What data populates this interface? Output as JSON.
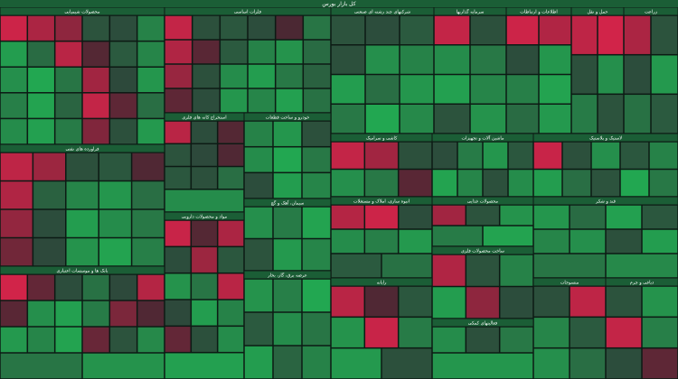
{
  "title": "کل بازار بورس",
  "sectors": [
    {
      "name": "محصولات شیمیایی",
      "changes": [
        -2.8,
        -2.1,
        -1.5,
        0.4,
        0.2,
        1.8,
        2.6,
        1.1,
        -2.4,
        -0.3,
        0.6,
        1.9,
        2.2,
        2.9,
        1.4,
        -1.9,
        0.1,
        2.4,
        1.7,
        2.8,
        0.9,
        -2.6,
        -0.5,
        1.2,
        2.1,
        2.7,
        1.6,
        -1.2,
        0.3,
        2.5
      ]
    },
    {
      "name": "فراورده های نفتی",
      "changes": [
        -2.5,
        -1.8,
        0.3,
        0.5,
        -0.2,
        -2.2,
        0.8,
        1.9,
        2.4,
        1.2,
        -1.6,
        0.2,
        2.6,
        2.1,
        1.5,
        -0.9,
        0.1,
        2.3,
        2.8,
        1.7
      ]
    },
    {
      "name": "بانک ها و موسسات اعتباری",
      "changes": [
        -2.9,
        -0.6,
        0.2,
        1.3,
        0.1,
        -2.3,
        -0.4,
        2.2,
        2.7,
        1.6,
        -1.1,
        -0.2,
        2.5,
        1.9,
        2.8,
        -0.7,
        0.4,
        2.0,
        1.4,
        2.3
      ]
    },
    {
      "name": "فلزات اساسی",
      "changes": [
        -2.6,
        0.3,
        0.5,
        0.2,
        -0.1,
        1.4,
        -2.2,
        -0.4,
        0.6,
        1.8,
        2.3,
        1.1,
        -1.7,
        0.3,
        2.1,
        2.6,
        1.5,
        0.8,
        -0.5,
        0.2,
        2.4,
        1.9,
        2.7,
        1.3
      ]
    },
    {
      "name": "استخراج کانه های فلزی",
      "changes": [
        -2.4,
        0.2,
        -0.3,
        0.4,
        0.1,
        -0.2,
        0.5,
        0.3,
        1.2,
        2.1
      ]
    },
    {
      "name": "خودرو و ساخت قطعات",
      "changes": [
        1.8,
        2.4,
        0.3,
        2.1,
        2.9,
        1.5,
        0.2,
        2.6,
        1.9
      ]
    },
    {
      "name": "سیمان، آهک و گچ",
      "changes": [
        2.2,
        1.6,
        2.8,
        0.4,
        2.5,
        1.9
      ]
    },
    {
      "name": "مواد و محصولات دارویی",
      "changes": [
        -2.7,
        -0.3,
        -2.1,
        0.2,
        -1.8,
        0.5,
        2.3,
        1.4,
        -2.4,
        0.1,
        2.6,
        1.8,
        -0.6,
        0.3,
        2.1,
        2.7
      ]
    },
    {
      "name": "عرضه برق، گاز، بخار",
      "changes": [
        2.3,
        1.7,
        2.9,
        0.6,
        2.1,
        1.4,
        2.6,
        0.9,
        1.8
      ]
    },
    {
      "name": "شرکتهای چند رشته ای صنعتی",
      "changes": [
        0.4,
        0.2,
        0.6,
        0.3,
        2.2,
        1.8,
        2.6,
        1.2,
        2.4,
        1.5,
        2.9,
        2.0
      ]
    },
    {
      "name": "سرمایه گذاریها",
      "changes": [
        -2.6,
        0.3,
        2.1,
        1.5,
        2.7,
        1.9,
        0.4,
        2.3
      ]
    },
    {
      "name": "اطلاعات و ارتباطات",
      "changes": [
        -2.8,
        -2.2,
        0.2,
        2.4,
        1.7,
        2.8,
        1.1,
        2.5
      ]
    },
    {
      "name": "حمل و نقل",
      "changes": [
        -2.5,
        -2.9,
        0.3,
        2.2,
        1.6,
        0.4
      ]
    },
    {
      "name": "زراعت",
      "changes": [
        -2.1,
        0.4,
        0.2,
        2.5,
        1.3,
        0.6
      ]
    },
    {
      "name": "کاشی و سرامیک",
      "changes": [
        -2.6,
        -1.9,
        0.3,
        2.2,
        1.5,
        -0.4
      ]
    },
    {
      "name": "ماشین آلات و تجهیزات",
      "changes": [
        0.2,
        1.6,
        2.4,
        0.5,
        2.8,
        1.9,
        0.3,
        2.1
      ]
    },
    {
      "name": "لاستیک و پلاستیک",
      "changes": [
        -2.7,
        0.3,
        2.2,
        0.5,
        1.8,
        2.6,
        1.2,
        0.4,
        2.9,
        1.5
      ]
    },
    {
      "name": "انبوه سازی، املاک و مستغلات",
      "changes": [
        -2.3,
        -2.8,
        0.2,
        2.1,
        1.7,
        2.5,
        0.6,
        1.3
      ]
    },
    {
      "name": "محصولات غذایی",
      "changes": [
        -1.9,
        0.4,
        2.3,
        1.6,
        2.8
      ]
    },
    {
      "name": "قند و شکر",
      "changes": [
        2.4,
        1.1,
        2.7,
        0.5,
        1.9,
        2.2,
        0.3,
        2.6,
        1.4,
        2.0
      ]
    },
    {
      "name": "رایانه",
      "changes": [
        -2.4,
        -0.2,
        0.5,
        2.3,
        -2.7,
        1.6,
        2.5,
        0.3
      ]
    },
    {
      "name": "ساخت محصولات فلزی",
      "changes": [
        -2.2,
        0.4,
        1.8,
        2.6,
        -1.5,
        0.2
      ]
    },
    {
      "name": "فعالیتهای کمکی",
      "changes": [
        2.1,
        0.3,
        1.5,
        2.4
      ]
    },
    {
      "name": "منسوجات",
      "changes": [
        0.3,
        -2.5,
        1.9,
        0.6,
        2.2,
        1.2
      ]
    },
    {
      "name": "دباغی و چرم",
      "changes": [
        0.4,
        2.3,
        -2.6,
        1.7,
        0.2,
        -0.5
      ]
    }
  ]
}
